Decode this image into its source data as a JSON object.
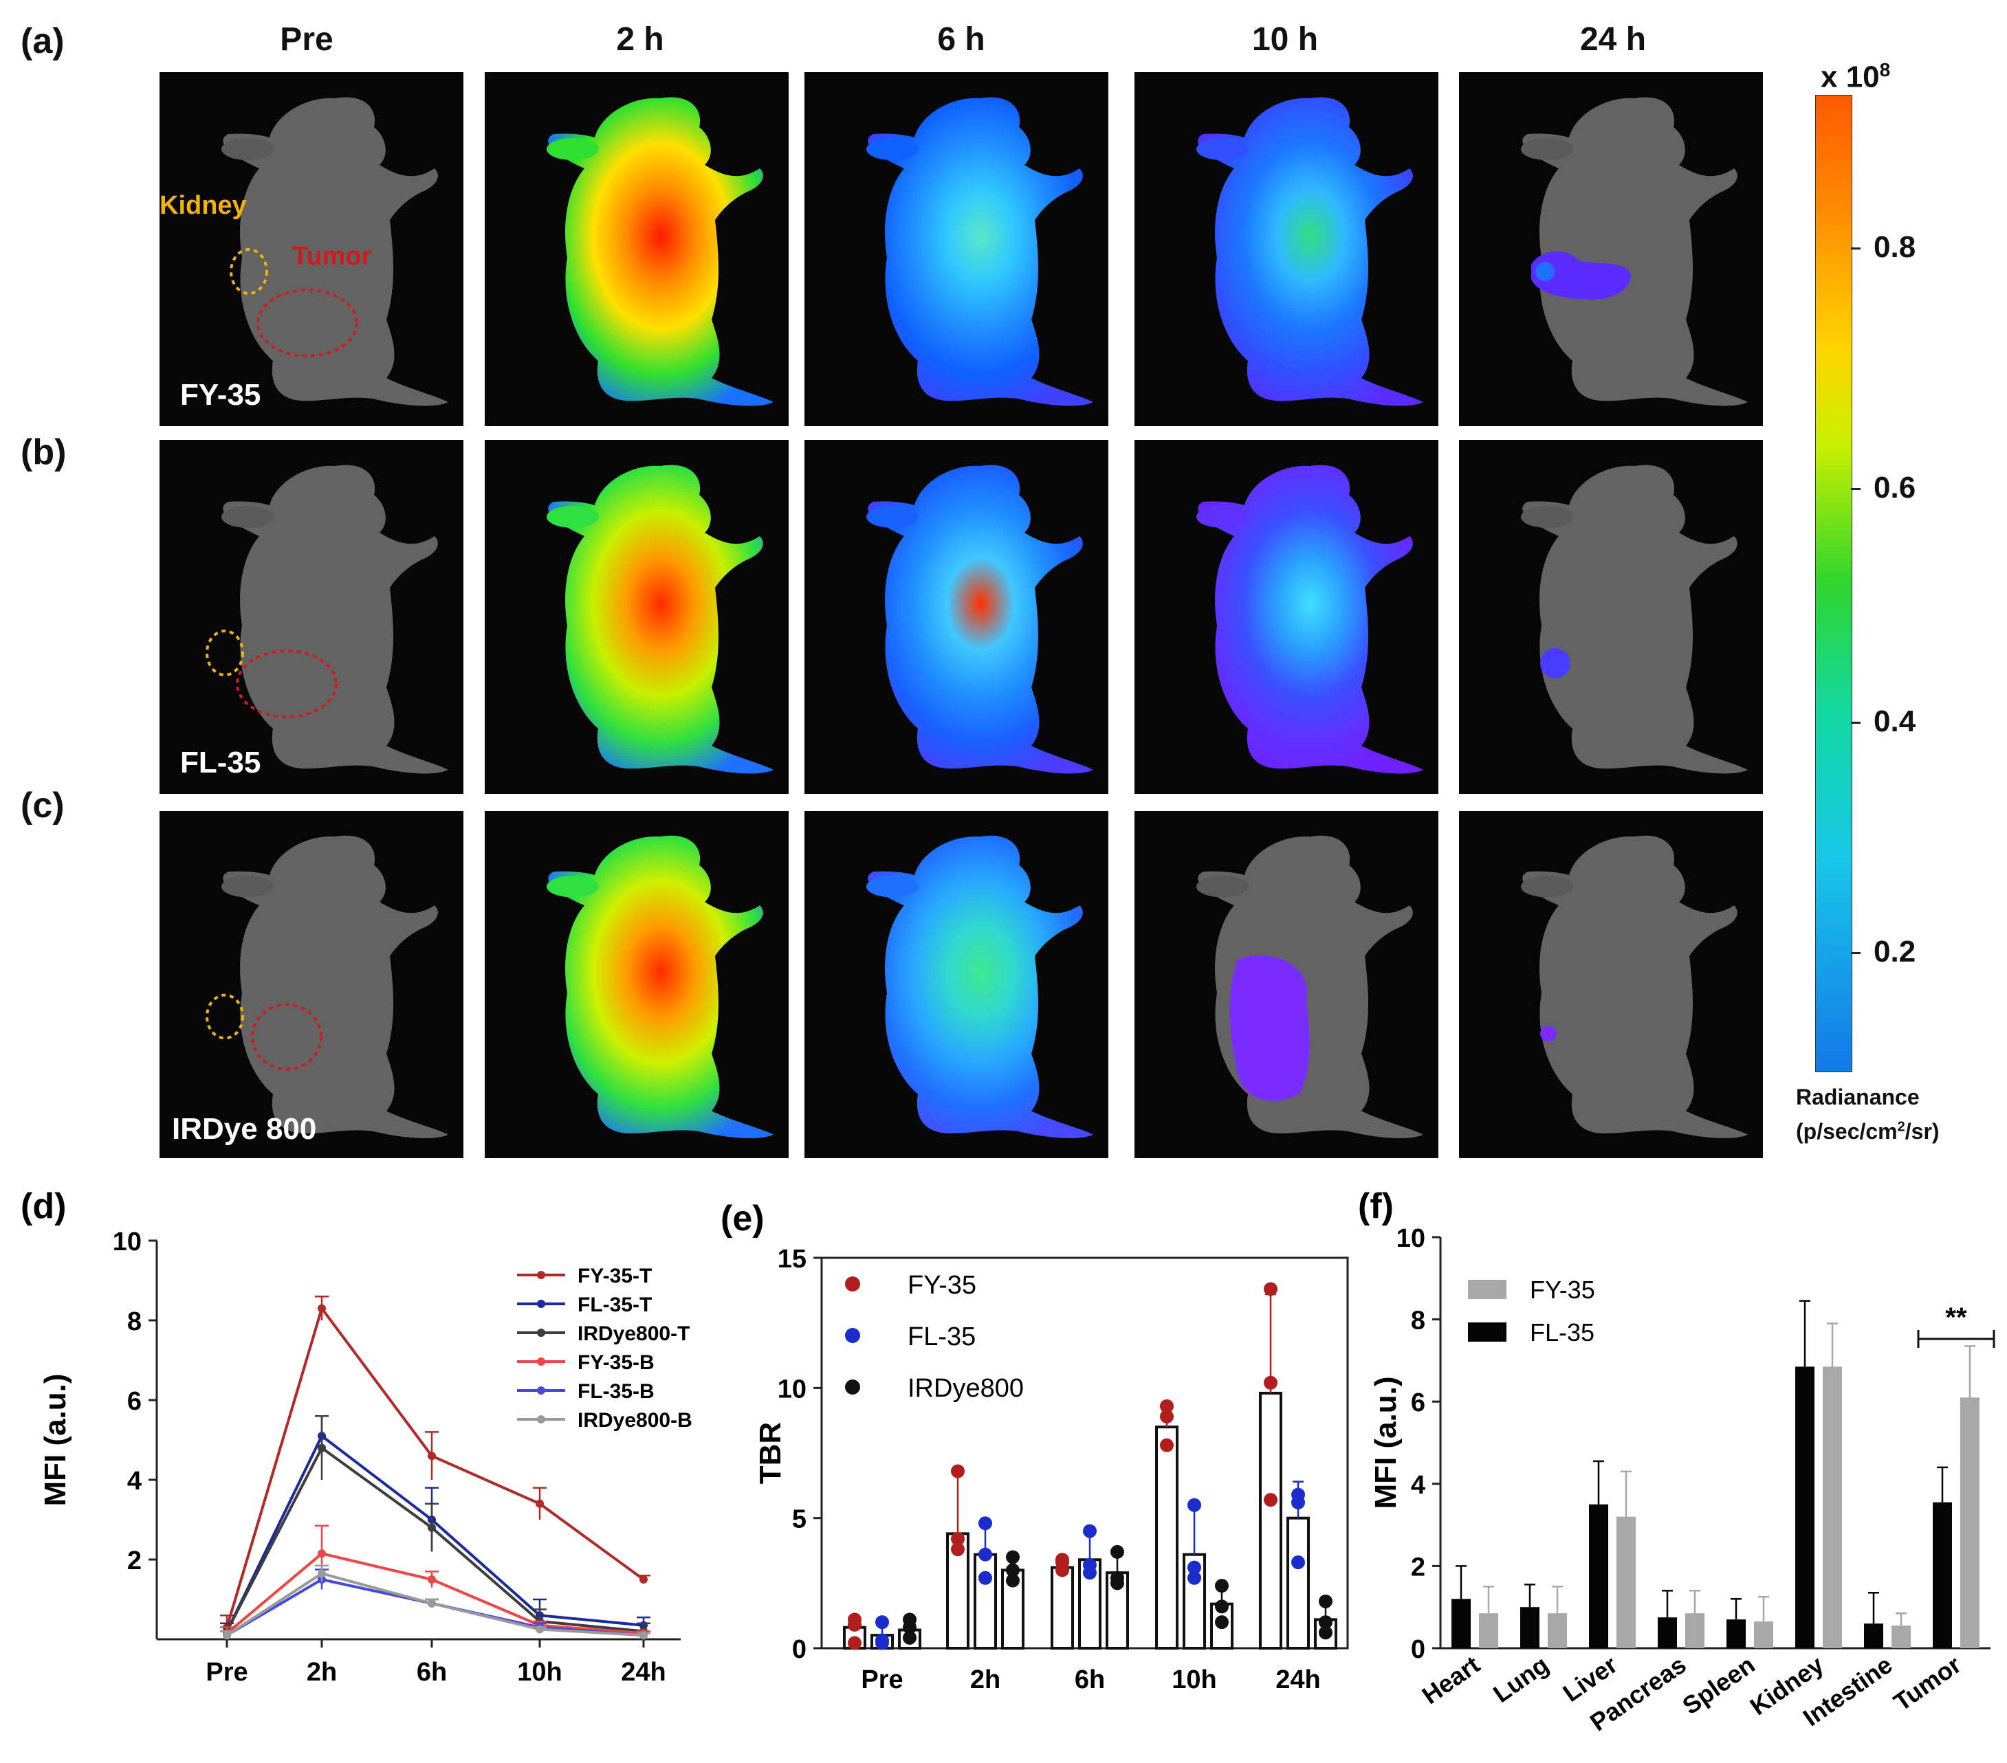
{
  "imaging": {
    "panel_labels": [
      "(a)",
      "(b)",
      "(c)"
    ],
    "timepoints": [
      "Pre",
      "2 h",
      "6 h",
      "10 h",
      "24 h"
    ],
    "rows": [
      "FY-35",
      "FL-35",
      "IRDye 800"
    ],
    "roi_labels": {
      "kidney": "Kidney",
      "tumor": "Tumor"
    },
    "colorbar": {
      "exponent_base": "x 10",
      "exponent_power": "8",
      "ticks": [
        "0.8",
        "0.6",
        "0.4",
        "0.2"
      ],
      "unit_line1": "Radianance",
      "unit_line2_pre": "(p/sec/cm",
      "unit_line2_sup": "2",
      "unit_line2_post": "/sr)"
    },
    "colors": {
      "kidney_roi": "#f3b10e",
      "tumor_roi": "#d21a1a"
    }
  },
  "chart_data": [
    {
      "panel": "(d)",
      "type": "line",
      "categories": [
        "Pre",
        "2h",
        "6h",
        "10h",
        "24h"
      ],
      "ylabel": "MFI (a.u.)",
      "ylim": [
        0,
        10
      ],
      "yticks": [
        "2",
        "4",
        "6",
        "8",
        "10"
      ],
      "yticks_values": [
        2,
        4,
        6,
        8,
        10
      ],
      "legend": "top-right",
      "series": [
        {
          "name": "FY-35-T",
          "color": "#b02a2a",
          "values": [
            0.3,
            8.3,
            4.6,
            3.4,
            1.5
          ],
          "err": [
            0.3,
            0.3,
            0.6,
            0.4,
            0.1
          ]
        },
        {
          "name": "FL-35-T",
          "color": "#1a2a9a",
          "values": [
            0.2,
            5.1,
            3.0,
            0.6,
            0.35
          ],
          "err": [
            0.2,
            0.5,
            0.8,
            0.4,
            0.2
          ]
        },
        {
          "name": "IRDye800-T",
          "color": "#3d3d3d",
          "values": [
            0.2,
            4.8,
            2.8,
            0.45,
            0.2
          ],
          "err": [
            0.2,
            0.8,
            0.6,
            0.3,
            0.2
          ]
        },
        {
          "name": "FY-35-B",
          "color": "#ee4545",
          "values": [
            0.15,
            2.15,
            1.5,
            0.35,
            0.15
          ],
          "err": [
            0.15,
            0.7,
            0.2,
            0.1,
            0.05
          ]
        },
        {
          "name": "FL-35-B",
          "color": "#4747e6",
          "values": [
            0.1,
            1.5,
            0.9,
            0.3,
            0.1
          ],
          "err": [
            0.1,
            0.25,
            0.1,
            0.1,
            0.05
          ]
        },
        {
          "name": "IRDye800-B",
          "color": "#9a9a9a",
          "values": [
            0.1,
            1.65,
            0.9,
            0.25,
            0.1
          ],
          "err": [
            0.1,
            0.2,
            0.1,
            0.05,
            0.05
          ]
        }
      ]
    },
    {
      "panel": "(e)",
      "type": "bar",
      "categories": [
        "Pre",
        "2h",
        "6h",
        "10h",
        "24h"
      ],
      "ylabel": "TBR",
      "ylim": [
        0,
        15
      ],
      "yticks": [
        "0",
        "5",
        "10",
        "15"
      ],
      "yticks_values": [
        0,
        5,
        10,
        15
      ],
      "legend": "top-left",
      "series": [
        {
          "name": "FY-35",
          "color": "#b01e1e",
          "values": [
            0.8,
            4.4,
            3.1,
            8.5,
            9.8
          ],
          "err": [
            0.3,
            2.5,
            0.3,
            0.8,
            3.8
          ],
          "points": [
            [
              1.1,
              0.9,
              0.2
            ],
            [
              6.8,
              3.8,
              4.2
            ],
            [
              3.4,
              3.0,
              3.3
            ],
            [
              9.3,
              8.9,
              7.8
            ],
            [
              13.8,
              10.2,
              5.7
            ]
          ]
        },
        {
          "name": "FL-35",
          "color": "#1a2ccc",
          "values": [
            0.5,
            3.6,
            3.4,
            3.6,
            5.0
          ],
          "err": [
            0.4,
            1.2,
            1.0,
            2.0,
            1.4
          ],
          "points": [
            [
              1.0,
              0.2,
              0.3
            ],
            [
              4.8,
              3.6,
              2.7
            ],
            [
              4.5,
              3.2,
              2.9
            ],
            [
              5.5,
              2.7,
              3.1
            ],
            [
              5.9,
              5.6,
              3.3
            ]
          ]
        },
        {
          "name": "IRDye800",
          "color": "#111111",
          "values": [
            0.7,
            3.0,
            2.9,
            1.7,
            1.1
          ],
          "err": [
            0.3,
            0.5,
            0.7,
            0.7,
            0.6
          ],
          "points": [
            [
              1.1,
              0.8,
              0.4
            ],
            [
              3.5,
              3.0,
              2.6
            ],
            [
              3.7,
              2.7,
              2.5
            ],
            [
              2.4,
              1.6,
              1.0
            ],
            [
              1.8,
              1.0,
              0.6
            ]
          ]
        }
      ]
    },
    {
      "panel": "(f)",
      "type": "bar",
      "categories": [
        "Heart",
        "Lung",
        "Liver",
        "Pancreas",
        "Spleen",
        "Kidney",
        "Intestine",
        "Tumor"
      ],
      "ylabel": "MFI (a.u.)",
      "ylim": [
        0,
        10
      ],
      "yticks": [
        "0",
        "2",
        "4",
        "6",
        "8",
        "10"
      ],
      "yticks_values": [
        0,
        2,
        4,
        6,
        8,
        10
      ],
      "legend": "top-left",
      "significance": "**",
      "series": [
        {
          "name": "FL-35",
          "color": "#050505",
          "values": [
            1.2,
            1.0,
            3.5,
            0.75,
            0.7,
            6.85,
            0.6,
            3.55
          ],
          "err": [
            0.8,
            0.55,
            1.05,
            0.65,
            0.5,
            1.6,
            0.75,
            0.85
          ]
        },
        {
          "name": "FY-35",
          "color": "#a8a8a8",
          "values": [
            0.85,
            0.85,
            3.2,
            0.85,
            0.65,
            6.85,
            0.55,
            6.1
          ],
          "err": [
            0.65,
            0.65,
            1.1,
            0.55,
            0.6,
            1.05,
            0.3,
            1.25
          ]
        }
      ]
    }
  ]
}
